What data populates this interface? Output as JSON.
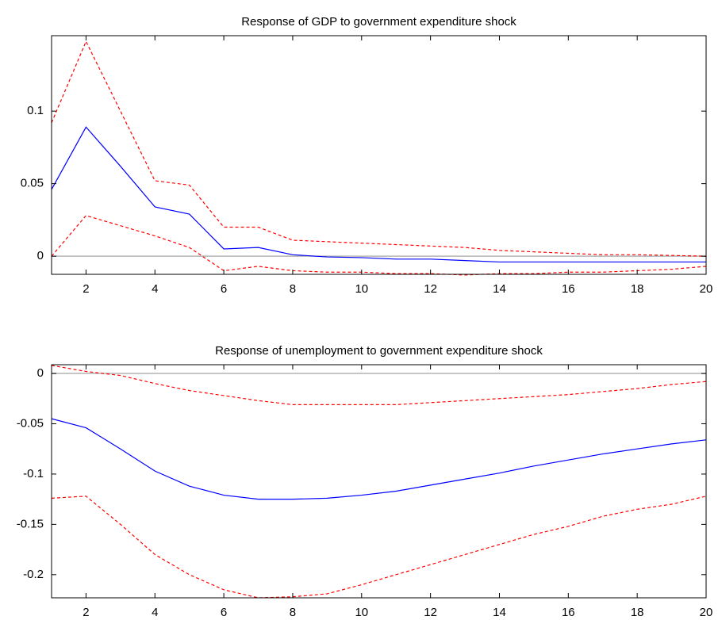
{
  "chart_data": [
    {
      "type": "line",
      "title": "Response of GDP to government expenditure shock",
      "x": [
        1,
        2,
        3,
        4,
        5,
        6,
        7,
        8,
        9,
        10,
        11,
        12,
        13,
        14,
        15,
        16,
        17,
        18,
        19,
        20
      ],
      "series": [
        {
          "color": "#0000ff",
          "dashed": false,
          "values": [
            0.046,
            0.089,
            0.062,
            0.034,
            0.029,
            0.005,
            0.006,
            0.001,
            -0.0005,
            -0.001,
            -0.002,
            -0.002,
            -0.003,
            -0.004,
            -0.004,
            -0.004,
            -0.004,
            -0.004,
            -0.004,
            -0.004
          ]
        },
        {
          "color": "#ff0000",
          "dashed": true,
          "values": [
            0.092,
            0.148,
            0.1,
            0.052,
            0.049,
            0.02,
            0.02,
            0.011,
            0.01,
            0.009,
            0.008,
            0.007,
            0.006,
            0.004,
            0.003,
            0.002,
            0.001,
            0.001,
            0.0005,
            0.0
          ]
        },
        {
          "color": "#ff0000",
          "dashed": true,
          "values": [
            0.0,
            0.028,
            0.021,
            0.014,
            0.006,
            -0.01,
            -0.007,
            -0.01,
            -0.011,
            -0.011,
            -0.012,
            -0.012,
            -0.013,
            -0.012,
            -0.012,
            -0.011,
            -0.011,
            -0.01,
            -0.009,
            -0.007
          ]
        }
      ],
      "zero_line": 0,
      "xlim": [
        1,
        20
      ],
      "xticks": [
        2,
        4,
        6,
        8,
        10,
        12,
        14,
        16,
        18,
        20
      ],
      "ylim": [
        -0.0125,
        0.152
      ],
      "yticks": [
        0,
        0.05,
        0.1
      ]
    },
    {
      "type": "line",
      "title": "Response of unemployment to government expenditure shock",
      "x": [
        1,
        2,
        3,
        4,
        5,
        6,
        7,
        8,
        9,
        10,
        11,
        12,
        13,
        14,
        15,
        16,
        17,
        18,
        19,
        20
      ],
      "series": [
        {
          "color": "#0000ff",
          "dashed": false,
          "values": [
            -0.045,
            -0.054,
            -0.075,
            -0.097,
            -0.112,
            -0.121,
            -0.125,
            -0.125,
            -0.124,
            -0.121,
            -0.117,
            -0.111,
            -0.105,
            -0.099,
            -0.092,
            -0.086,
            -0.08,
            -0.075,
            -0.07,
            -0.066
          ]
        },
        {
          "color": "#ff0000",
          "dashed": true,
          "values": [
            0.008,
            0.002,
            -0.002,
            -0.01,
            -0.017,
            -0.022,
            -0.027,
            -0.031,
            -0.031,
            -0.031,
            -0.031,
            -0.029,
            -0.027,
            -0.025,
            -0.023,
            -0.021,
            -0.018,
            -0.015,
            -0.011,
            -0.008
          ]
        },
        {
          "color": "#ff0000",
          "dashed": true,
          "values": [
            -0.124,
            -0.122,
            -0.15,
            -0.18,
            -0.2,
            -0.215,
            -0.223,
            -0.222,
            -0.219,
            -0.21,
            -0.2,
            -0.19,
            -0.18,
            -0.17,
            -0.16,
            -0.152,
            -0.142,
            -0.135,
            -0.13,
            -0.122
          ]
        }
      ],
      "zero_line": 0,
      "xlim": [
        1,
        20
      ],
      "xticks": [
        2,
        4,
        6,
        8,
        10,
        12,
        14,
        16,
        18,
        20
      ],
      "ylim": [
        -0.223,
        0.0087
      ],
      "yticks": [
        0,
        -0.05,
        -0.1,
        -0.15,
        -0.2
      ]
    }
  ]
}
